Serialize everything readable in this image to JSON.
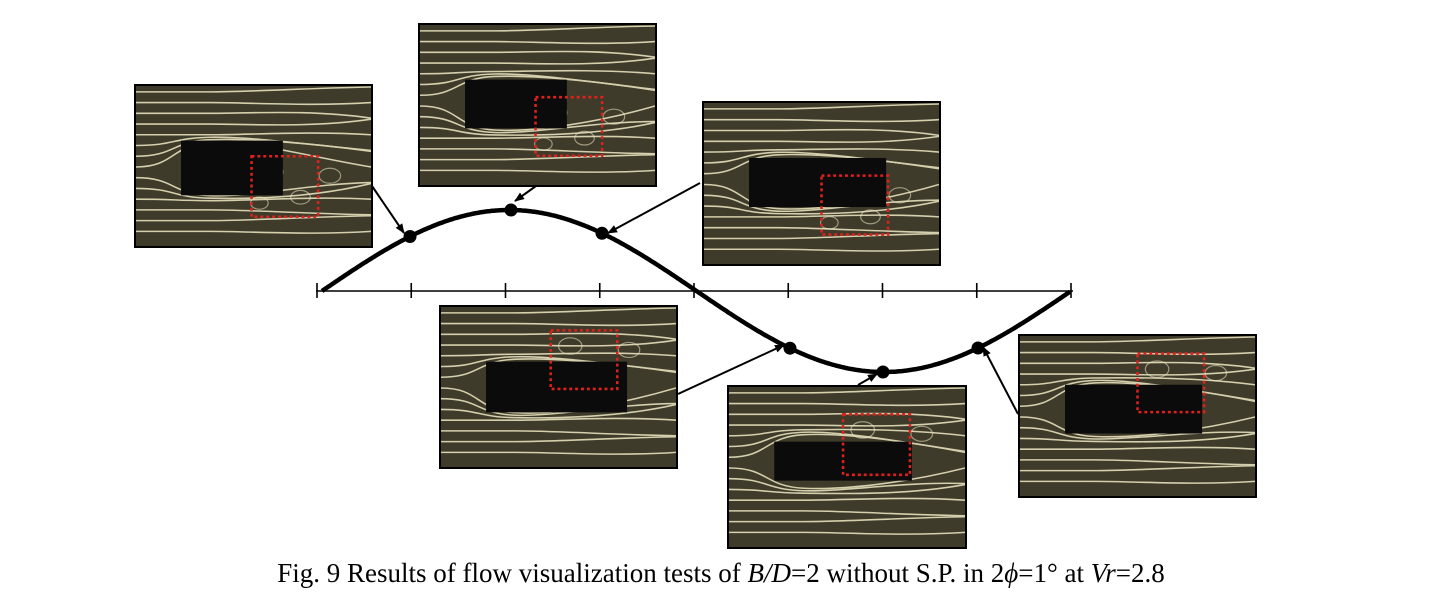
{
  "figure": {
    "caption": {
      "prefix": "Fig. 9 Results of flow visualization tests of ",
      "var1": "B/D",
      "mid1": "=2 without S.P. in 2",
      "phi": "ϕ",
      "mid2": "=1° at ",
      "var2": "Vr",
      "suffix": "=2.8"
    },
    "colors": {
      "curve": "#000000",
      "marker": "#000000",
      "roi_box": "#e0201c",
      "photo_background": "#3f3b2a",
      "streakline": "#efe9c4",
      "body": "#0b0b0b"
    },
    "waveform": {
      "type": "one full sine cycle",
      "axis_ticks": 9
    },
    "photos": [
      {
        "id": "phase-1",
        "description_icon": "flow-visualization-photo"
      },
      {
        "id": "phase-2",
        "description_icon": "flow-visualization-photo"
      },
      {
        "id": "phase-3",
        "description_icon": "flow-visualization-photo"
      },
      {
        "id": "phase-4",
        "description_icon": "flow-visualization-photo"
      },
      {
        "id": "phase-5",
        "description_icon": "flow-visualization-photo"
      },
      {
        "id": "phase-6",
        "description_icon": "flow-visualization-photo"
      }
    ]
  }
}
